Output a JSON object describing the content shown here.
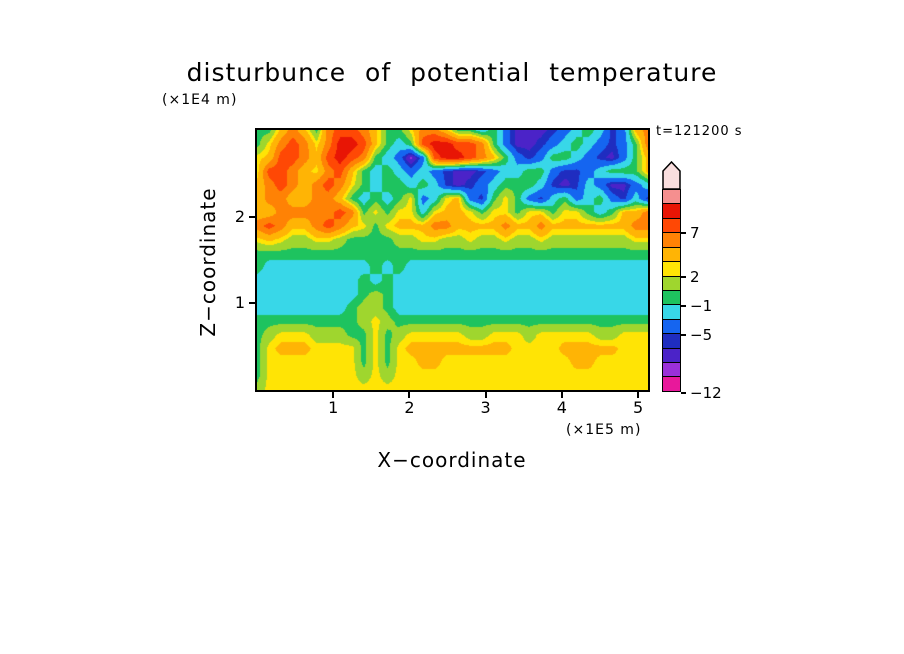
{
  "page": {
    "background": "#FFFFFF"
  },
  "chart_data": {
    "type": "heatmap",
    "title": "disturbunce of potential temperature",
    "time_label": "t=121200 s",
    "xlabel": "X−coordinate",
    "ylabel": "Z−coordinate",
    "x_unit": "(×1E5 m)",
    "y_unit": "(×1E4 m)",
    "x_range": [
      0,
      5.13
    ],
    "y_range": [
      0,
      3.0
    ],
    "x_ticks": [
      1,
      2,
      3,
      4,
      5
    ],
    "y_ticks": [
      1,
      2
    ],
    "grid_lines": false,
    "colorbar": {
      "position": "right",
      "segments": [
        "#E8189B",
        "#9B30D9",
        "#4B23C8",
        "#1F2DC0",
        "#1565F0",
        "#38D7E8",
        "#1EC35F",
        "#9FD62E",
        "#FFE405",
        "#FFB405",
        "#FF8205",
        "#FF4805",
        "#E81505",
        "#F58F8F"
      ],
      "arrow_color": "#F9DEDE",
      "labels": [
        {
          "text": "7",
          "seg": 11
        },
        {
          "text": "2",
          "seg": 8
        },
        {
          "text": "−1",
          "seg": 6
        },
        {
          "text": "−5",
          "seg": 4
        },
        {
          "text": "−12",
          "seg": 0
        }
      ]
    },
    "levels": [
      -9,
      -7.5,
      -6,
      -5,
      -3,
      -1,
      0.5,
      2,
      3,
      5,
      7,
      9,
      11
    ],
    "palette": [
      "#E8189B",
      "#9B30D9",
      "#4B23C8",
      "#1F2DC0",
      "#1565F0",
      "#38D7E8",
      "#1EC35F",
      "#9FD62E",
      "#FFE405",
      "#FFB405",
      "#FF8205",
      "#FF4805",
      "#E81505",
      "#F58F8F"
    ],
    "grid": {
      "ncols": 34,
      "nrows": 20,
      "note": "values in K, rows top (z=3.0E4 m) to bottom (z=0), cols left (x=0) to right (x=5.13E5 m)",
      "values": [
        [
          0,
          0,
          3.5,
          6,
          3.5,
          0,
          6,
          8,
          8,
          6,
          3.5,
          0,
          0,
          2.5,
          6,
          6,
          3.5,
          0,
          0,
          -2,
          0,
          -4,
          -6.5,
          -6.5,
          -6.5,
          -5.5,
          -4,
          -2,
          0,
          -2,
          -5.5,
          -4,
          3.5,
          6
        ],
        [
          0,
          2.5,
          6,
          8,
          6,
          2.5,
          6,
          10,
          10,
          8,
          3.5,
          0,
          -2,
          0,
          8,
          10,
          10,
          8,
          8,
          6,
          0,
          -4,
          -6.5,
          -6.5,
          -5.5,
          -4,
          -2,
          0,
          -2,
          -4,
          -5.5,
          -4,
          0,
          6
        ],
        [
          2.5,
          3.5,
          8,
          8,
          6,
          3.5,
          8,
          10,
          8,
          6,
          0,
          -2,
          -4,
          -8,
          -4,
          8,
          10,
          10,
          8,
          6,
          3.5,
          0,
          -4,
          -5.5,
          -4,
          0,
          0,
          -2,
          -4,
          -5.5,
          -6.5,
          -4,
          0,
          3.5
        ],
        [
          2.5,
          8,
          8,
          6,
          3.5,
          2.5,
          6,
          8,
          3.5,
          0,
          -2,
          0,
          -2,
          -4,
          -2,
          -4,
          -5.5,
          -6.5,
          -6.5,
          -5.5,
          -4,
          -2,
          -2,
          0,
          0,
          -4,
          -5.5,
          -5.5,
          -4,
          -2,
          0,
          0,
          0,
          3.5
        ],
        [
          3.5,
          6,
          8,
          6,
          3.5,
          6,
          8,
          6,
          2.5,
          0,
          -2,
          0,
          0,
          -2,
          0,
          -2,
          -5.5,
          -6.5,
          -5.5,
          -4,
          -2,
          0,
          0,
          0,
          -2,
          -5.5,
          -6.5,
          -5.5,
          -2,
          -4,
          -6.5,
          -6.5,
          -4,
          -2
        ],
        [
          3.5,
          6,
          6,
          3.5,
          3.5,
          6,
          6,
          3.5,
          0,
          -2,
          0,
          -2,
          0,
          2.5,
          -4,
          -2,
          2.5,
          3.5,
          -4,
          -5.5,
          0,
          2.5,
          0,
          -4,
          -5.5,
          -2,
          0,
          -4,
          -2,
          0,
          -4,
          -5.5,
          -2,
          -5.5
        ],
        [
          3.5,
          3.5,
          6,
          6,
          6,
          6,
          6,
          8,
          6,
          0,
          2.5,
          0,
          2.5,
          2.5,
          -2,
          2.5,
          3.5,
          3.5,
          2.5,
          0,
          2.5,
          2.5,
          0,
          2.5,
          2.5,
          0,
          2.5,
          2.5,
          0,
          -2,
          0,
          3.5,
          3.5,
          6
        ],
        [
          6,
          8,
          6,
          3.5,
          3.5,
          6,
          8,
          6,
          3.5,
          2.5,
          0,
          2.5,
          3.5,
          3.5,
          3.5,
          6,
          6,
          3.5,
          3.5,
          3.5,
          3.5,
          6,
          3.5,
          3.5,
          6,
          3.5,
          3.5,
          3.5,
          3.5,
          3.5,
          3.5,
          3.5,
          6,
          6
        ],
        [
          2.5,
          3.5,
          2.5,
          1.2,
          1.2,
          2.5,
          2.5,
          1.2,
          0,
          0,
          0,
          0,
          1.2,
          1.2,
          2.5,
          2.5,
          1.2,
          1.2,
          2.5,
          1.2,
          1.2,
          2.5,
          1.2,
          1.2,
          2.5,
          1.2,
          1.2,
          1.2,
          1.2,
          1.2,
          1.2,
          1.2,
          2.5,
          2.5
        ],
        [
          0,
          0,
          0,
          0,
          0,
          0,
          0,
          0,
          0,
          0,
          0,
          0,
          0,
          0,
          0,
          0,
          0,
          0,
          0,
          0,
          0,
          0,
          0,
          0,
          0,
          0,
          0,
          0,
          0,
          0,
          0,
          0,
          0,
          0
        ],
        [
          0,
          -2,
          -2,
          -2,
          -2,
          -2,
          -2,
          -2,
          -2,
          -2,
          0,
          -2,
          0,
          -2,
          -2,
          -2,
          -2,
          -2,
          -2,
          -2,
          -2,
          -2,
          -2,
          -2,
          -2,
          -2,
          -2,
          -2,
          -2,
          -2,
          -2,
          -2,
          -2,
          -2
        ],
        [
          -2,
          -2,
          -2,
          -2,
          -2,
          -2,
          -2,
          -2,
          -2,
          0,
          -2,
          0,
          -2,
          -2,
          -2,
          -2,
          -2,
          -2,
          -2,
          -2,
          -2,
          -2,
          -2,
          -2,
          -2,
          -2,
          -2,
          -2,
          -2,
          -2,
          -2,
          -2,
          -2,
          -2
        ],
        [
          -2,
          -2,
          -2,
          -2,
          -2,
          -2,
          -2,
          -2,
          -2,
          0,
          1.2,
          0,
          -2,
          -2,
          -2,
          -2,
          -2,
          -2,
          -2,
          -2,
          -2,
          -2,
          -2,
          -2,
          -2,
          -2,
          -2,
          -2,
          -2,
          -2,
          -2,
          -2,
          -2,
          -2
        ],
        [
          -2,
          -2,
          -2,
          -2,
          -2,
          -2,
          -2,
          -2,
          0,
          1.2,
          1.2,
          0,
          -2,
          -2,
          -2,
          -2,
          -2,
          -2,
          -2,
          -2,
          -2,
          -2,
          -2,
          -2,
          -2,
          -2,
          -2,
          -2,
          -2,
          -2,
          -2,
          -2,
          -2,
          -2
        ],
        [
          0,
          0,
          0,
          0,
          0,
          0,
          0,
          0,
          0,
          1.2,
          2.5,
          1.2,
          0,
          0,
          0,
          0,
          0,
          0,
          0,
          0,
          0,
          0,
          0,
          0,
          0,
          0,
          0,
          0,
          0,
          0,
          0,
          0,
          0,
          0
        ],
        [
          0,
          1.2,
          2.5,
          2.5,
          2.5,
          1.2,
          1.2,
          1.2,
          0,
          0,
          2.5,
          0,
          1.2,
          2.5,
          2.5,
          2.5,
          2.5,
          2.5,
          1.2,
          1.2,
          2.5,
          2.5,
          2.5,
          1.2,
          2.5,
          2.5,
          2.5,
          2.5,
          2.5,
          1.2,
          1.2,
          2.5,
          2.5,
          2.5
        ],
        [
          0,
          2.5,
          3.5,
          3.5,
          3.5,
          2.5,
          2.5,
          2.5,
          2.5,
          0,
          2.5,
          0,
          2.5,
          3.5,
          3.5,
          3.5,
          3.5,
          3.5,
          3.5,
          3.5,
          3.5,
          3.5,
          2.5,
          2.5,
          2.5,
          2.5,
          3.5,
          3.5,
          3.5,
          3.5,
          3.5,
          2.5,
          2.5,
          2.5
        ],
        [
          0,
          2.5,
          2.5,
          2.5,
          2.5,
          2.5,
          2.5,
          2.5,
          2.5,
          0,
          2.5,
          0,
          2.5,
          2.5,
          3.5,
          3.5,
          2.5,
          2.5,
          2.5,
          2.5,
          2.5,
          2.5,
          2.5,
          2.5,
          2.5,
          2.5,
          2.5,
          3.5,
          3.5,
          2.5,
          2.5,
          2.5,
          2.5,
          2.5
        ],
        [
          0,
          2.5,
          2.5,
          2.5,
          2.5,
          2.5,
          2.5,
          2.5,
          2.5,
          1.2,
          2.5,
          1.2,
          2.5,
          2.5,
          2.5,
          2.5,
          2.5,
          2.5,
          2.5,
          2.5,
          2.5,
          2.5,
          2.5,
          2.5,
          2.5,
          2.5,
          2.5,
          2.5,
          2.5,
          2.5,
          2.5,
          2.5,
          2.5,
          2.5
        ],
        [
          1.2,
          2.5,
          2.5,
          2.5,
          2.5,
          2.5,
          2.5,
          2.5,
          2.5,
          2.5,
          2.5,
          2.5,
          2.5,
          2.5,
          2.5,
          2.5,
          2.5,
          2.5,
          2.5,
          2.5,
          2.5,
          2.5,
          2.5,
          2.5,
          2.5,
          2.5,
          2.5,
          2.5,
          2.5,
          2.5,
          2.5,
          2.5,
          2.5,
          2.5
        ]
      ]
    }
  }
}
